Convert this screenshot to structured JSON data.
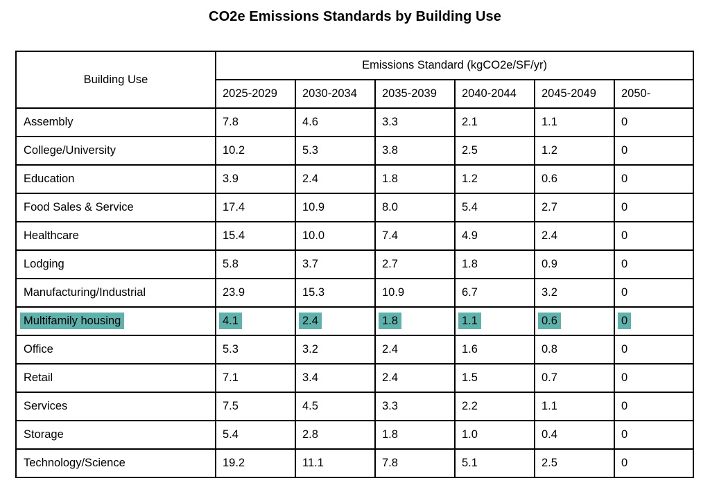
{
  "page": {
    "title": "CO2e Emissions Standards by Building Use"
  },
  "table": {
    "corner_header": "Building Use",
    "group_header": "Emissions Standard (kgCO2e/SF/yr)",
    "period_headers": [
      "2025-2029",
      "2030-2034",
      "2035-2039",
      "2040-2044",
      "2045-2049",
      "2050-"
    ],
    "highlight_color": "#5fb2ac",
    "rows": [
      {
        "label": "Assembly",
        "values": [
          "7.8",
          "4.6",
          "3.3",
          "2.1",
          "1.1",
          "0"
        ],
        "highlighted": false
      },
      {
        "label": "College/University",
        "values": [
          "10.2",
          "5.3",
          "3.8",
          "2.5",
          "1.2",
          "0"
        ],
        "highlighted": false
      },
      {
        "label": "Education",
        "values": [
          "3.9",
          "2.4",
          "1.8",
          "1.2",
          "0.6",
          "0"
        ],
        "highlighted": false
      },
      {
        "label": "Food Sales & Service",
        "values": [
          "17.4",
          "10.9",
          "8.0",
          "5.4",
          "2.7",
          "0"
        ],
        "highlighted": false
      },
      {
        "label": "Healthcare",
        "values": [
          "15.4",
          "10.0",
          "7.4",
          "4.9",
          "2.4",
          "0"
        ],
        "highlighted": false
      },
      {
        "label": "Lodging",
        "values": [
          "5.8",
          "3.7",
          "2.7",
          "1.8",
          "0.9",
          "0"
        ],
        "highlighted": false
      },
      {
        "label": "Manufacturing/Industrial",
        "values": [
          "23.9",
          "15.3",
          "10.9",
          "6.7",
          "3.2",
          "0"
        ],
        "highlighted": false
      },
      {
        "label": "Multifamily housing",
        "values": [
          "4.1",
          "2.4",
          "1.8",
          "1.1",
          "0.6",
          "0"
        ],
        "highlighted": true
      },
      {
        "label": "Office",
        "values": [
          "5.3",
          "3.2",
          "2.4",
          "1.6",
          "0.8",
          "0"
        ],
        "highlighted": false
      },
      {
        "label": "Retail",
        "values": [
          "7.1",
          "3.4",
          "2.4",
          "1.5",
          "0.7",
          "0"
        ],
        "highlighted": false
      },
      {
        "label": "Services",
        "values": [
          "7.5",
          "4.5",
          "3.3",
          "2.2",
          "1.1",
          "0"
        ],
        "highlighted": false
      },
      {
        "label": "Storage",
        "values": [
          "5.4",
          "2.8",
          "1.8",
          "1.0",
          "0.4",
          "0"
        ],
        "highlighted": false
      },
      {
        "label": "Technology/Science",
        "values": [
          "19.2",
          "11.1",
          "7.8",
          "5.1",
          "2.5",
          "0"
        ],
        "highlighted": false
      }
    ]
  }
}
